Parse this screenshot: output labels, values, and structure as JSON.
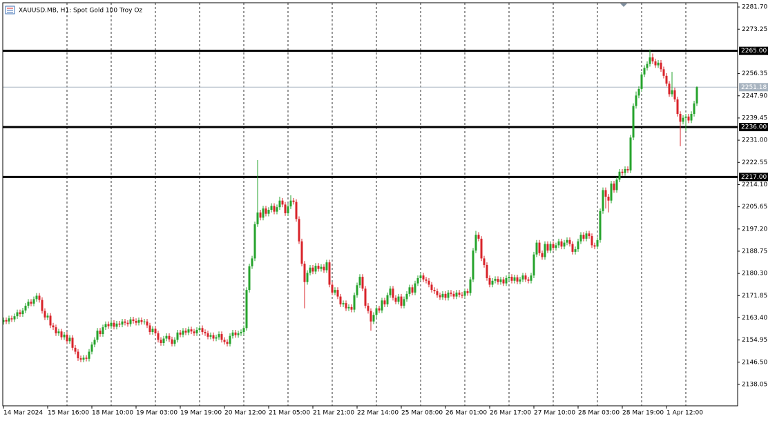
{
  "chart_data": {
    "type": "candlestick",
    "title": "XAUUSD.MB, H1:  Spot Gold 100 Troy Oz",
    "up_color": "#26a32c",
    "down_color": "#d8232a",
    "categories": [
      "14 Mar 2024",
      null,
      null,
      null,
      null,
      null,
      null,
      null,
      null,
      null,
      null,
      null,
      null,
      null,
      null,
      null,
      "15 Mar 16:00",
      null,
      null,
      null,
      null,
      null,
      null,
      null,
      null,
      null,
      null,
      null,
      null,
      null,
      null,
      null,
      "18 Mar 10:00",
      null,
      null,
      null,
      null,
      null,
      null,
      null,
      null,
      null,
      null,
      null,
      null,
      null,
      null,
      null,
      "19 Mar 03:00",
      null,
      null,
      null,
      null,
      null,
      null,
      null,
      null,
      null,
      null,
      null,
      null,
      null,
      null,
      null,
      "19 Mar 19:00",
      null,
      null,
      null,
      null,
      null,
      null,
      null,
      null,
      null,
      null,
      null,
      null,
      null,
      null,
      null,
      "20 Mar 12:00",
      null,
      null,
      null,
      null,
      null,
      null,
      null,
      null,
      null,
      null,
      null,
      null,
      null,
      null,
      null,
      "21 Mar 05:00",
      null,
      null,
      null,
      null,
      null,
      null,
      null,
      null,
      null,
      null,
      null,
      null,
      null,
      null,
      null,
      "21 Mar 21:00",
      null,
      null,
      null,
      null,
      null,
      null,
      null,
      null,
      null,
      null,
      null,
      null,
      null,
      null,
      null,
      "22 Mar 14:00",
      null,
      null,
      null,
      null,
      null,
      null,
      null,
      null,
      null,
      null,
      null,
      null,
      null,
      null,
      null,
      "25 Mar 08:00",
      null,
      null,
      null,
      null,
      null,
      null,
      null,
      null,
      null,
      null,
      null,
      null,
      null,
      null,
      null,
      "26 Mar 01:00",
      null,
      null,
      null,
      null,
      null,
      null,
      null,
      null,
      null,
      null,
      null,
      null,
      null,
      null,
      null,
      "26 Mar 17:00",
      null,
      null,
      null,
      null,
      null,
      null,
      null,
      null,
      null,
      null,
      null,
      null,
      null,
      null,
      null,
      "27 Mar 10:00",
      null,
      null,
      null,
      null,
      null,
      null,
      null,
      null,
      null,
      null,
      null,
      null,
      null,
      null,
      null,
      "28 Mar 03:00",
      null,
      null,
      null,
      null,
      null,
      null,
      null,
      null,
      null,
      null,
      null,
      null,
      null,
      null,
      null,
      "28 Mar 19:00",
      null,
      null,
      null,
      null,
      null,
      null,
      null,
      null,
      null,
      null,
      null,
      null,
      null,
      null,
      null,
      "1 Apr 12:00",
      null,
      null,
      null,
      null,
      null,
      null,
      null,
      null,
      null,
      null,
      null
    ],
    "open": [
      2161.8,
      2162.5,
      2162.0,
      2163.2,
      2162.8,
      2164.0,
      2165.5,
      2164.8,
      2166.2,
      2168.0,
      2169.5,
      2168.8,
      2170.5,
      2171.8,
      2170.2,
      2166.0,
      2163.5,
      2164.2,
      2160.5,
      2159.8,
      2157.5,
      2158.2,
      2156.0,
      2157.0,
      2154.5,
      2155.8,
      2152.0,
      2150.5,
      2148.0,
      2147.5,
      2148.2,
      2147.8,
      2150.5,
      2153.2,
      2155.0,
      2158.5,
      2157.2,
      2159.8,
      2161.0,
      2160.2,
      2161.5,
      2160.0,
      2161.2,
      2160.8,
      2162.0,
      2161.5,
      2161.0,
      2162.8,
      2162.2,
      2161.5,
      2162.5,
      2161.8,
      2162.0,
      2160.5,
      2158.0,
      2159.2,
      2157.5,
      2155.0,
      2153.8,
      2155.5,
      2156.5,
      2155.2,
      2153.5,
      2155.0,
      2157.8,
      2157.0,
      2158.5,
      2157.8,
      2159.0,
      2158.2,
      2157.5,
      2158.8,
      2159.5,
      2158.0,
      2157.5,
      2156.2,
      2156.8,
      2155.5,
      2156.0,
      2157.2,
      2155.0,
      2154.2,
      2153.5,
      2156.5,
      2157.8,
      2156.8,
      2157.5,
      2158.0,
      2159.5,
      2174.0,
      2183.0,
      2186.0,
      2199.0,
      2203.5,
      2201.5,
      2205.0,
      2203.0,
      2204.5,
      2206.0,
      2203.8,
      2205.5,
      2208.0,
      2206.5,
      2203.2,
      2205.8,
      2208.0,
      2207.5,
      2201.0,
      2192.5,
      2184.0,
      2177.0,
      2180.5,
      2182.5,
      2181.0,
      2183.2,
      2182.0,
      2182.8,
      2181.5,
      2184.5,
      2176.0,
      2173.0,
      2174.0,
      2171.5,
      2168.5,
      2169.0,
      2167.0,
      2167.5,
      2166.5,
      2172.0,
      2175.8,
      2179.0,
      2174.5,
      2168.0,
      2166.0,
      2162.0,
      2164.5,
      2167.0,
      2166.2,
      2170.0,
      2168.5,
      2172.0,
      2174.5,
      2171.0,
      2169.5,
      2171.5,
      2168.0,
      2170.5,
      2172.5,
      2175.0,
      2173.0,
      2176.5,
      2178.5,
      2179.5,
      2178.0,
      2177.5,
      2176.0,
      2174.0,
      2173.5,
      2172.0,
      2171.2,
      2172.5,
      2171.0,
      2173.0,
      2172.5,
      2171.5,
      2173.0,
      2172.2,
      2171.8,
      2173.5,
      2172.8,
      2178.0,
      2189.0,
      2195.0,
      2193.5,
      2186.0,
      2183.5,
      2178.5,
      2176.0,
      2177.5,
      2178.2,
      2177.0,
      2178.0,
      2176.5,
      2178.5,
      2179.0,
      2177.5,
      2178.8,
      2177.2,
      2178.0,
      2179.5,
      2178.0,
      2177.5,
      2179.5,
      2187.5,
      2192.0,
      2188.0,
      2186.5,
      2191.5,
      2189.0,
      2191.5,
      2190.0,
      2191.0,
      2192.5,
      2190.5,
      2192.0,
      2193.0,
      2191.5,
      2188.5,
      2189.5,
      2192.5,
      2195.0,
      2193.5,
      2195.5,
      2194.5,
      2191.0,
      2190.5,
      2193.0,
      2204.0,
      2212.0,
      2209.5,
      2208.0,
      2214.5,
      2212.0,
      2216.0,
      2219.0,
      2218.5,
      2220.0,
      2219.5,
      2232.0,
      2244.0,
      2248.0,
      2250.5,
      2256.0,
      2258.5,
      2260.0,
      2262.5,
      2261.0,
      2259.5,
      2260.5,
      2258.0,
      2255.5,
      2252.5,
      2248.5,
      2250.0,
      2246.5,
      2241.0,
      2238.0,
      2239.5,
      2240.0,
      2238.5,
      2241.0,
      2245.0
    ],
    "high": [
      2163.5,
      2163.5,
      2164.2,
      2164.2,
      2165.0,
      2166.5,
      2166.5,
      2167.2,
      2169.0,
      2170.5,
      2170.5,
      2171.5,
      2172.8,
      2172.8,
      2171.2,
      2167.0,
      2165.2,
      2165.2,
      2161.5,
      2160.8,
      2159.2,
      2159.2,
      2158.0,
      2158.0,
      2156.8,
      2156.8,
      2153.0,
      2151.5,
      2149.0,
      2149.2,
      2149.2,
      2151.5,
      2154.2,
      2156.0,
      2159.5,
      2159.5,
      2160.8,
      2162.0,
      2162.0,
      2162.5,
      2162.5,
      2162.2,
      2162.2,
      2163.0,
      2163.0,
      2162.5,
      2163.8,
      2163.8,
      2163.2,
      2163.5,
      2163.5,
      2163.0,
      2163.0,
      2161.5,
      2160.2,
      2160.2,
      2158.5,
      2156.0,
      2156.5,
      2157.5,
      2157.5,
      2156.2,
      2156.0,
      2158.8,
      2158.8,
      2159.5,
      2159.5,
      2160.0,
      2160.0,
      2159.2,
      2159.8,
      2160.5,
      2160.5,
      2159.0,
      2158.5,
      2157.8,
      2157.8,
      2157.0,
      2158.2,
      2158.2,
      2156.0,
      2155.2,
      2157.5,
      2158.8,
      2158.8,
      2158.5,
      2159.0,
      2160.5,
      2175.0,
      2184.0,
      2187.0,
      2200.0,
      2223.4,
      2204.5,
      2206.0,
      2206.0,
      2205.5,
      2207.0,
      2207.0,
      2206.5,
      2209.5,
      2209.0,
      2207.5,
      2206.8,
      2210.0,
      2209.0,
      2208.5,
      2202.0,
      2193.5,
      2185.0,
      2181.5,
      2183.5,
      2183.5,
      2184.2,
      2184.2,
      2183.8,
      2183.8,
      2185.5,
      2185.5,
      2177.0,
      2175.0,
      2175.0,
      2172.5,
      2170.0,
      2170.0,
      2168.5,
      2168.5,
      2173.0,
      2176.8,
      2180.0,
      2180.0,
      2175.5,
      2169.0,
      2167.0,
      2165.5,
      2168.0,
      2168.0,
      2171.0,
      2171.0,
      2173.0,
      2175.5,
      2175.5,
      2172.0,
      2172.5,
      2172.5,
      2171.5,
      2173.5,
      2176.0,
      2176.0,
      2177.5,
      2179.5,
      2180.5,
      2180.5,
      2179.0,
      2178.5,
      2177.0,
      2175.0,
      2174.5,
      2173.0,
      2173.5,
      2173.5,
      2174.0,
      2174.0,
      2173.5,
      2174.0,
      2174.0,
      2173.2,
      2174.5,
      2174.5,
      2179.0,
      2190.0,
      2196.5,
      2196.0,
      2194.5,
      2187.0,
      2184.5,
      2179.5,
      2178.5,
      2179.2,
      2179.2,
      2179.0,
      2179.0,
      2179.5,
      2180.0,
      2180.0,
      2179.8,
      2179.8,
      2179.0,
      2180.5,
      2180.5,
      2179.0,
      2180.5,
      2188.5,
      2193.0,
      2193.0,
      2189.0,
      2192.5,
      2192.5,
      2192.5,
      2192.5,
      2192.0,
      2193.5,
      2193.5,
      2193.0,
      2194.0,
      2194.0,
      2192.5,
      2190.5,
      2193.5,
      2196.0,
      2196.0,
      2196.5,
      2196.5,
      2195.5,
      2192.0,
      2194.0,
      2205.0,
      2213.0,
      2213.0,
      2210.5,
      2215.5,
      2215.5,
      2217.0,
      2220.0,
      2220.0,
      2221.0,
      2221.0,
      2233.0,
      2245.0,
      2249.5,
      2251.5,
      2257.0,
      2259.5,
      2261.0,
      2265.5,
      2264.0,
      2262.0,
      2261.5,
      2261.5,
      2259.0,
      2256.5,
      2253.5,
      2257.0,
      2251.0,
      2247.5,
      2242.0,
      2240.5,
      2241.0,
      2241.0,
      2242.0,
      2246.0,
      2251.5
    ],
    "low": [
      2160.8,
      2161.0,
      2161.0,
      2161.8,
      2161.8,
      2163.0,
      2163.8,
      2163.8,
      2165.2,
      2167.0,
      2167.8,
      2167.8,
      2169.5,
      2169.2,
      2165.0,
      2162.5,
      2162.5,
      2159.5,
      2158.8,
      2156.5,
      2156.5,
      2155.0,
      2155.0,
      2153.5,
      2153.5,
      2151.0,
      2149.5,
      2147.0,
      2146.5,
      2146.5,
      2146.8,
      2146.8,
      2149.5,
      2152.2,
      2154.0,
      2156.2,
      2156.2,
      2158.8,
      2159.2,
      2159.2,
      2159.0,
      2159.0,
      2159.8,
      2159.8,
      2160.5,
      2160.0,
      2160.0,
      2161.2,
      2160.5,
      2160.5,
      2160.8,
      2160.8,
      2159.5,
      2157.0,
      2157.0,
      2156.5,
      2154.0,
      2152.8,
      2152.8,
      2154.5,
      2154.2,
      2152.5,
      2152.5,
      2154.0,
      2156.0,
      2156.0,
      2156.8,
      2156.8,
      2157.2,
      2156.5,
      2156.5,
      2157.8,
      2157.0,
      2156.5,
      2155.2,
      2155.2,
      2154.5,
      2154.5,
      2155.0,
      2154.0,
      2153.2,
      2152.5,
      2152.5,
      2155.5,
      2155.8,
      2155.8,
      2156.5,
      2157.0,
      2158.5,
      2173.0,
      2182.0,
      2185.0,
      2198.0,
      2200.5,
      2200.5,
      2202.0,
      2202.0,
      2203.5,
      2202.8,
      2202.8,
      2204.5,
      2205.5,
      2202.2,
      2202.2,
      2204.8,
      2206.5,
      2200.0,
      2191.5,
      2183.0,
      2167.0,
      2176.0,
      2179.5,
      2180.0,
      2180.0,
      2181.0,
      2181.0,
      2180.5,
      2180.5,
      2175.0,
      2172.0,
      2172.0,
      2170.5,
      2167.5,
      2167.5,
      2166.0,
      2166.0,
      2165.5,
      2165.5,
      2171.0,
      2174.8,
      2173.5,
      2167.0,
      2165.0,
      2158.5,
      2161.0,
      2163.5,
      2165.2,
      2165.2,
      2167.5,
      2167.5,
      2171.0,
      2170.0,
      2168.5,
      2168.5,
      2167.0,
      2167.0,
      2169.5,
      2171.5,
      2172.0,
      2172.0,
      2175.5,
      2177.5,
      2177.0,
      2176.5,
      2175.0,
      2173.0,
      2172.5,
      2171.0,
      2170.2,
      2170.2,
      2170.0,
      2170.0,
      2171.5,
      2170.5,
      2170.5,
      2171.2,
      2170.8,
      2170.8,
      2171.8,
      2171.8,
      2177.0,
      2188.0,
      2192.5,
      2185.0,
      2182.5,
      2177.5,
      2175.0,
      2175.0,
      2176.5,
      2176.0,
      2176.0,
      2175.5,
      2175.5,
      2177.5,
      2176.5,
      2176.5,
      2176.2,
      2176.2,
      2177.0,
      2177.0,
      2176.5,
      2176.5,
      2178.5,
      2186.5,
      2187.0,
      2185.5,
      2185.5,
      2188.0,
      2188.0,
      2189.0,
      2189.0,
      2190.0,
      2189.5,
      2189.5,
      2191.0,
      2190.5,
      2187.5,
      2187.5,
      2188.5,
      2191.5,
      2192.5,
      2192.5,
      2193.5,
      2190.0,
      2189.5,
      2189.5,
      2192.0,
      2203.0,
      2205.0,
      2203.5,
      2207.0,
      2211.0,
      2211.0,
      2215.0,
      2217.5,
      2217.5,
      2218.5,
      2218.5,
      2231.0,
      2243.0,
      2247.0,
      2249.5,
      2255.0,
      2257.5,
      2259.0,
      2260.0,
      2258.5,
      2258.5,
      2257.0,
      2254.5,
      2251.5,
      2247.5,
      2247.5,
      2245.5,
      2240.0,
      2228.7,
      2237.0,
      2234.5,
      2237.5,
      2237.5,
      2240.0,
      2244.0
    ],
    "close": [
      2162.5,
      2162.0,
      2163.2,
      2162.8,
      2164.0,
      2165.5,
      2164.8,
      2166.2,
      2168.0,
      2169.5,
      2168.8,
      2170.5,
      2171.8,
      2170.2,
      2166.0,
      2163.5,
      2164.2,
      2160.5,
      2159.8,
      2157.5,
      2158.2,
      2156.0,
      2157.0,
      2154.5,
      2155.8,
      2152.0,
      2150.5,
      2148.0,
      2147.5,
      2148.2,
      2147.8,
      2150.5,
      2153.2,
      2155.0,
      2158.5,
      2157.2,
      2159.8,
      2161.0,
      2160.2,
      2161.5,
      2160.0,
      2161.2,
      2160.8,
      2162.0,
      2161.5,
      2161.0,
      2162.8,
      2162.2,
      2161.5,
      2162.5,
      2161.8,
      2162.0,
      2160.5,
      2158.0,
      2159.2,
      2157.5,
      2155.0,
      2153.8,
      2155.5,
      2156.5,
      2155.2,
      2153.5,
      2155.0,
      2157.8,
      2157.0,
      2158.5,
      2157.8,
      2159.0,
      2158.2,
      2157.5,
      2158.8,
      2159.5,
      2158.0,
      2157.5,
      2156.2,
      2156.8,
      2155.5,
      2156.0,
      2157.2,
      2155.0,
      2154.2,
      2153.5,
      2156.5,
      2157.8,
      2156.8,
      2157.5,
      2158.0,
      2159.5,
      2174.0,
      2183.0,
      2186.0,
      2199.0,
      2203.5,
      2201.5,
      2205.0,
      2203.0,
      2204.5,
      2206.0,
      2203.8,
      2205.5,
      2208.0,
      2206.5,
      2203.2,
      2205.8,
      2208.0,
      2207.5,
      2201.0,
      2192.5,
      2184.0,
      2177.0,
      2180.5,
      2182.5,
      2181.0,
      2183.2,
      2182.0,
      2182.8,
      2181.5,
      2184.5,
      2176.0,
      2173.0,
      2174.0,
      2171.5,
      2168.5,
      2169.0,
      2167.0,
      2167.5,
      2166.5,
      2172.0,
      2175.8,
      2179.0,
      2174.5,
      2168.0,
      2166.0,
      2162.0,
      2164.5,
      2167.0,
      2166.2,
      2170.0,
      2168.5,
      2172.0,
      2174.5,
      2171.0,
      2169.5,
      2171.5,
      2168.0,
      2170.5,
      2172.5,
      2175.0,
      2173.0,
      2176.5,
      2178.5,
      2179.5,
      2178.0,
      2177.5,
      2176.0,
      2174.0,
      2173.5,
      2172.0,
      2171.2,
      2172.5,
      2171.0,
      2173.0,
      2172.5,
      2171.5,
      2173.0,
      2172.2,
      2171.8,
      2173.5,
      2172.8,
      2178.0,
      2189.0,
      2195.0,
      2193.5,
      2186.0,
      2183.5,
      2178.5,
      2176.0,
      2177.5,
      2178.2,
      2177.0,
      2178.0,
      2176.5,
      2178.5,
      2179.0,
      2177.5,
      2178.8,
      2177.2,
      2178.0,
      2179.5,
      2178.0,
      2177.5,
      2179.5,
      2187.5,
      2192.0,
      2188.0,
      2186.5,
      2191.5,
      2189.0,
      2191.5,
      2190.0,
      2191.0,
      2192.5,
      2190.5,
      2192.0,
      2193.0,
      2191.5,
      2188.5,
      2189.5,
      2192.5,
      2195.0,
      2193.5,
      2195.5,
      2194.5,
      2191.0,
      2190.5,
      2193.0,
      2204.0,
      2212.0,
      2209.5,
      2208.0,
      2214.5,
      2212.0,
      2216.0,
      2219.0,
      2218.5,
      2220.0,
      2219.5,
      2232.0,
      2244.0,
      2248.0,
      2250.5,
      2256.0,
      2258.5,
      2260.0,
      2262.5,
      2261.0,
      2259.5,
      2260.5,
      2258.0,
      2255.5,
      2252.5,
      2248.5,
      2250.0,
      2246.5,
      2241.0,
      2238.0,
      2239.5,
      2240.0,
      2238.5,
      2241.0,
      2245.0,
      2251.18
    ],
    "ylim": [
      2129.9,
      2283.3
    ],
    "yticks": [
      {
        "value": 2281.7,
        "label": "2281.70"
      },
      {
        "value": 2273.25,
        "label": "2273.25"
      },
      {
        "value": 2256.35,
        "label": "2256.35"
      },
      {
        "value": 2247.9,
        "label": "2247.90"
      },
      {
        "value": 2239.45,
        "label": "2239.45"
      },
      {
        "value": 2231,
        "label": "2231.00"
      },
      {
        "value": 2222.55,
        "label": "2222.55"
      },
      {
        "value": 2214.1,
        "label": "2214.10"
      },
      {
        "value": 2205.65,
        "label": "2205.65"
      },
      {
        "value": 2197.2,
        "label": "2197.20"
      },
      {
        "value": 2188.75,
        "label": "2188.75"
      },
      {
        "value": 2180.3,
        "label": "2180.30"
      },
      {
        "value": 2171.85,
        "label": "2171.85"
      },
      {
        "value": 2163.4,
        "label": "2163.40"
      },
      {
        "value": 2154.95,
        "label": "2154.95"
      },
      {
        "value": 2146.5,
        "label": "2146.50"
      },
      {
        "value": 2138.05,
        "label": "2138.05"
      }
    ],
    "hlines": [
      {
        "value": 2265,
        "label": "2265.00"
      },
      {
        "value": 2236,
        "label": "2236.00"
      },
      {
        "value": 2217,
        "label": "2217.00"
      }
    ],
    "current_price": 2251.18,
    "grid": true
  }
}
